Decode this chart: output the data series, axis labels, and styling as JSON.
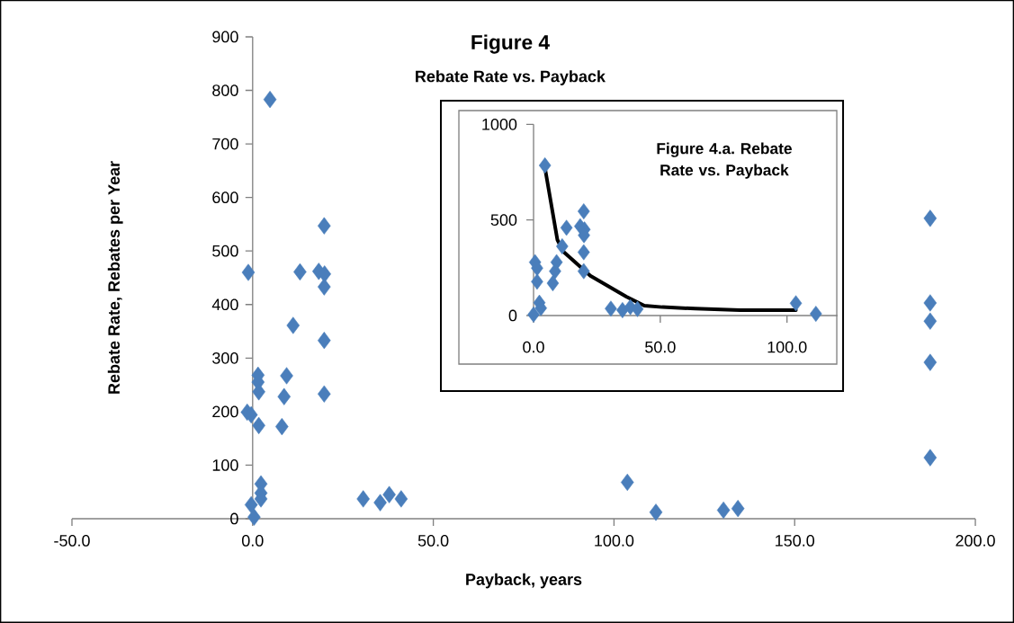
{
  "chart_data": [
    {
      "type": "scatter",
      "title": "Figure 4",
      "subtitle": "Rebate Rate vs. Payback",
      "xlabel": "Payback, years",
      "ylabel": "Rebate Rate, Rebates per Year",
      "color": "#4a7ebb",
      "marker": "diamond",
      "grid": false,
      "x": [
        4.8,
        19.8,
        -1.2,
        13.1,
        18.3,
        19.9,
        19.8,
        11.2,
        19.8,
        1.5,
        9.4,
        1.5,
        1.7,
        8.7,
        19.8,
        -1.5,
        -0.4,
        1.7,
        8.1,
        2.3,
        2.3,
        2.3,
        -0.4,
        0.4,
        30.6,
        35.3,
        37.8,
        41.1,
        103.7,
        111.6,
        130.3,
        134.3,
        187.5,
        187.5,
        187.5,
        187.5,
        187.5
      ],
      "values": [
        783,
        547,
        460,
        461,
        462,
        457,
        433,
        361,
        333,
        268,
        267,
        255,
        237,
        228,
        233,
        199,
        194,
        174,
        172,
        65,
        48,
        37,
        26,
        3,
        37,
        30,
        45,
        37,
        68,
        12,
        16,
        19,
        561,
        403,
        369,
        292,
        114
      ],
      "xlim": [
        -50,
        200
      ],
      "ylim": [
        0,
        900
      ],
      "xticks": [
        {
          "value": -50,
          "label": "-50.0"
        },
        {
          "value": 0,
          "label": "0.0"
        },
        {
          "value": 50,
          "label": "50.0"
        },
        {
          "value": 100,
          "label": "100.0"
        },
        {
          "value": 150,
          "label": "150.0"
        },
        {
          "value": 200,
          "label": "200.0"
        }
      ],
      "yticks": [
        0,
        100,
        200,
        300,
        400,
        500,
        600,
        700,
        800,
        900
      ]
    },
    {
      "type": "scatter",
      "title": "Figure 4.a. Rebate Rate vs. Payback",
      "grid": false,
      "series": [
        {
          "type": "scatter",
          "color": "#4a7ebb",
          "marker": "diamond",
          "x": [
            4.5,
            19.8,
            13.0,
            18.4,
            20.1,
            19.9,
            11.3,
            19.8,
            0.6,
            1.4,
            9.1,
            8.5,
            19.8,
            1.4,
            7.6,
            2.3,
            2.9,
            0,
            30.5,
            35.1,
            38.2,
            41.0,
            103.5,
            111.4
          ],
          "values": [
            785,
            545,
            459,
            467,
            450,
            420,
            362,
            331,
            279,
            248,
            279,
            232,
            232,
            177,
            169,
            67,
            39,
            5,
            36,
            28,
            44,
            34,
            64,
            9
          ]
        },
        {
          "type": "line",
          "color": "#000000",
          "marker": "none",
          "x": [
            4.7,
            9.4,
            11.8,
            22.4,
            36.6,
            43.7,
            50.8,
            63.8,
            81.5,
            103.5
          ],
          "values": [
            757,
            396,
            334,
            208,
            99,
            52,
            44,
            36,
            28,
            28
          ]
        }
      ],
      "xlim": [
        0,
        120
      ],
      "ylim": [
        0,
        1000
      ],
      "xticks": [
        {
          "value": 0,
          "label": "0.0"
        },
        {
          "value": 50,
          "label": "50.0"
        },
        {
          "value": 100,
          "label": "100.0"
        }
      ],
      "yticks": [
        0,
        500,
        1000
      ]
    }
  ]
}
